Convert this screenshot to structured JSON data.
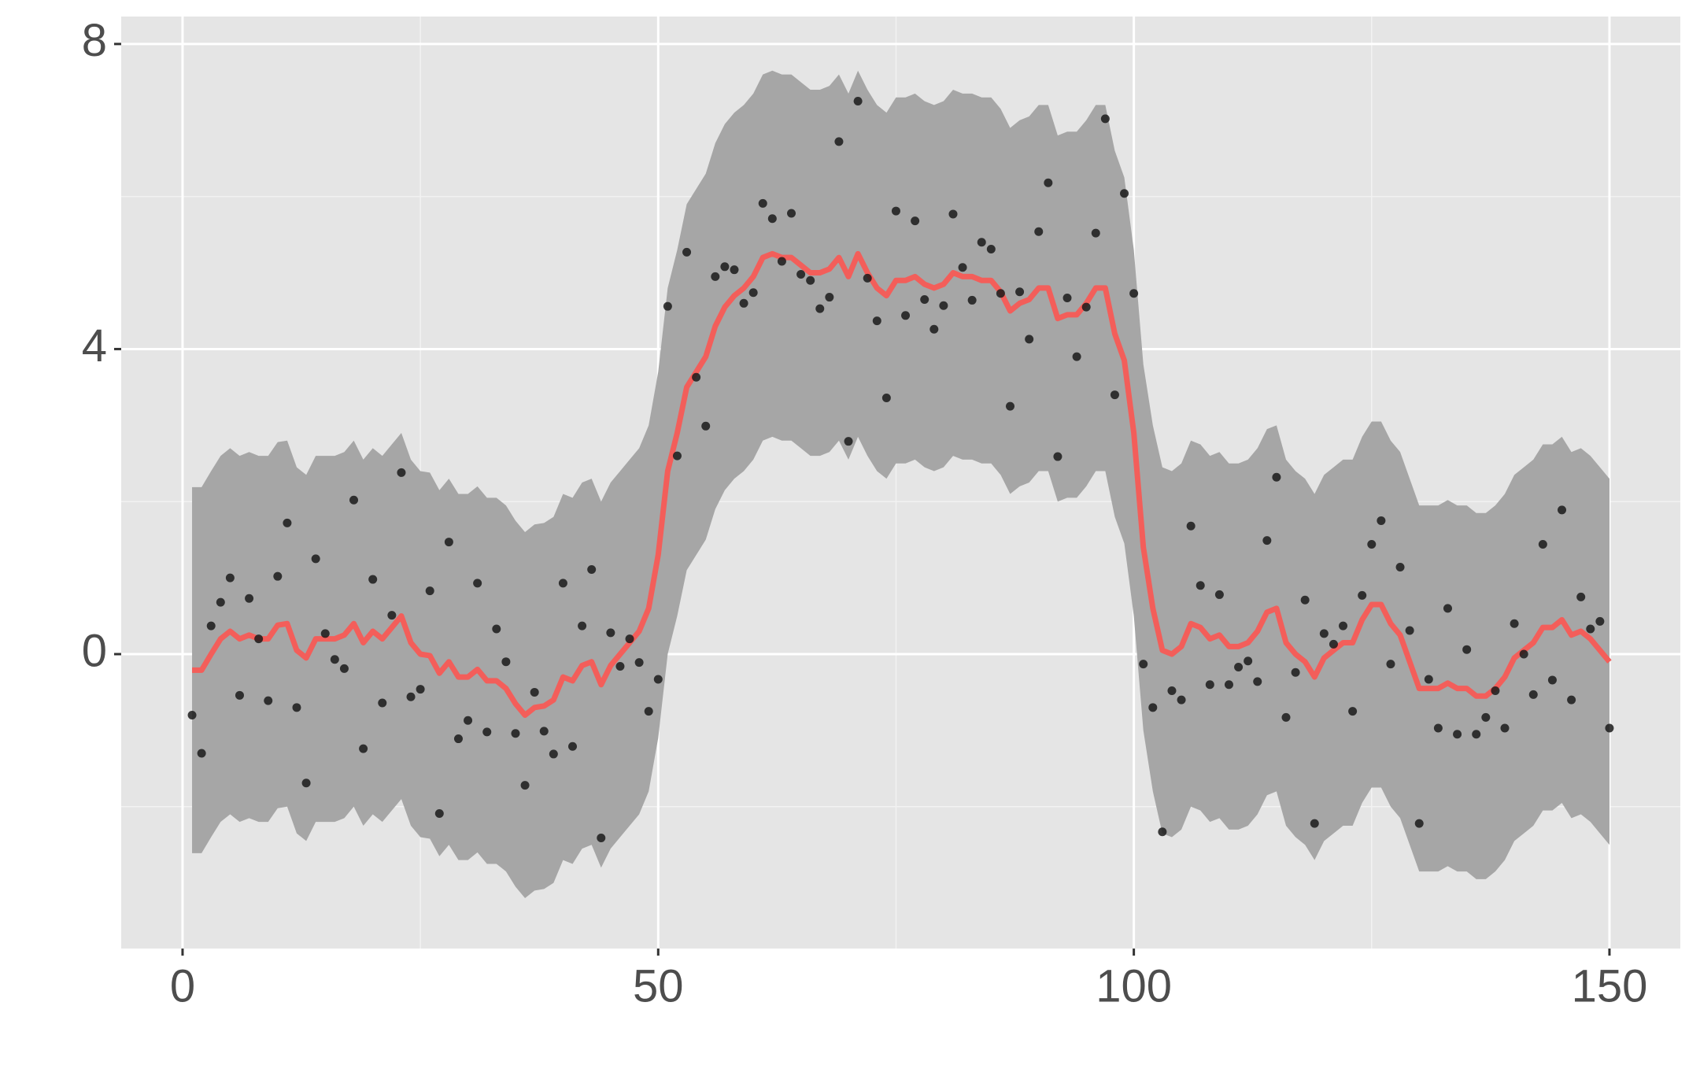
{
  "chart_data": {
    "type": "line",
    "x": [
      1,
      2,
      3,
      4,
      5,
      6,
      7,
      8,
      9,
      10,
      11,
      12,
      13,
      14,
      15,
      16,
      17,
      18,
      19,
      20,
      21,
      22,
      23,
      24,
      25,
      26,
      27,
      28,
      29,
      30,
      31,
      32,
      33,
      34,
      35,
      36,
      37,
      38,
      39,
      40,
      41,
      42,
      43,
      44,
      45,
      46,
      47,
      48,
      49,
      50,
      51,
      52,
      53,
      54,
      55,
      56,
      57,
      58,
      59,
      60,
      61,
      62,
      63,
      64,
      65,
      66,
      67,
      68,
      69,
      70,
      71,
      72,
      73,
      74,
      75,
      76,
      77,
      78,
      79,
      80,
      81,
      82,
      83,
      84,
      85,
      86,
      87,
      88,
      89,
      90,
      91,
      92,
      93,
      94,
      95,
      96,
      97,
      98,
      99,
      100,
      101,
      102,
      103,
      104,
      105,
      106,
      107,
      108,
      109,
      110,
      111,
      112,
      113,
      114,
      115,
      116,
      117,
      118,
      119,
      120,
      121,
      122,
      123,
      124,
      125,
      126,
      127,
      128,
      129,
      130,
      131,
      132,
      133,
      134,
      135,
      136,
      137,
      138,
      139,
      140,
      141,
      142,
      143,
      144,
      145,
      146,
      147,
      148,
      149,
      150
    ],
    "layers": [
      {
        "geom": "ribbon",
        "color": "#a6a6a6",
        "lower": [
          -2.61,
          -2.61,
          -2.4,
          -2.2,
          -2.1,
          -2.2,
          -2.15,
          -2.2,
          -2.2,
          -2.02,
          -2.0,
          -2.35,
          -2.45,
          -2.2,
          -2.2,
          -2.2,
          -2.15,
          -2.0,
          -2.25,
          -2.1,
          -2.2,
          -2.05,
          -1.9,
          -2.25,
          -2.4,
          -2.42,
          -2.65,
          -2.5,
          -2.7,
          -2.7,
          -2.6,
          -2.75,
          -2.75,
          -2.85,
          -3.05,
          -3.2,
          -3.1,
          -3.08,
          -3.0,
          -2.7,
          -2.75,
          -2.55,
          -2.5,
          -2.8,
          -2.55,
          -2.4,
          -2.25,
          -2.1,
          -1.8,
          -1.1,
          0.0,
          0.5,
          1.1,
          1.3,
          1.5,
          1.9,
          2.15,
          2.3,
          2.4,
          2.55,
          2.8,
          2.85,
          2.8,
          2.8,
          2.7,
          2.6,
          2.6,
          2.65,
          2.8,
          2.55,
          2.85,
          2.6,
          2.4,
          2.3,
          2.5,
          2.5,
          2.55,
          2.45,
          2.4,
          2.45,
          2.6,
          2.55,
          2.55,
          2.5,
          2.5,
          2.35,
          2.1,
          2.2,
          2.25,
          2.4,
          2.4,
          2.0,
          2.05,
          2.05,
          2.2,
          2.4,
          2.4,
          1.8,
          1.45,
          0.5,
          -1.0,
          -1.8,
          -2.35,
          -2.4,
          -2.3,
          -2.0,
          -2.05,
          -2.2,
          -2.15,
          -2.3,
          -2.3,
          -2.25,
          -2.1,
          -1.85,
          -1.8,
          -2.25,
          -2.4,
          -2.5,
          -2.7,
          -2.45,
          -2.35,
          -2.25,
          -2.25,
          -1.95,
          -1.75,
          -1.75,
          -2.0,
          -2.15,
          -2.5,
          -2.85,
          -2.85,
          -2.85,
          -2.78,
          -2.85,
          -2.85,
          -2.95,
          -2.95,
          -2.85,
          -2.7,
          -2.45,
          -2.35,
          -2.25,
          -2.05,
          -2.05,
          -1.95,
          -2.15,
          -2.1,
          -2.2,
          -2.35,
          -2.5
        ],
        "upper": [
          2.19,
          2.19,
          2.4,
          2.6,
          2.7,
          2.6,
          2.65,
          2.6,
          2.6,
          2.78,
          2.8,
          2.45,
          2.35,
          2.6,
          2.6,
          2.6,
          2.65,
          2.8,
          2.55,
          2.7,
          2.6,
          2.75,
          2.9,
          2.55,
          2.4,
          2.38,
          2.15,
          2.3,
          2.1,
          2.1,
          2.2,
          2.05,
          2.05,
          1.95,
          1.75,
          1.6,
          1.7,
          1.72,
          1.8,
          2.1,
          2.05,
          2.25,
          2.3,
          2.0,
          2.25,
          2.4,
          2.55,
          2.7,
          3.0,
          3.7,
          4.8,
          5.3,
          5.9,
          6.1,
          6.3,
          6.7,
          6.95,
          7.1,
          7.2,
          7.35,
          7.6,
          7.65,
          7.6,
          7.6,
          7.5,
          7.4,
          7.4,
          7.45,
          7.6,
          7.35,
          7.65,
          7.4,
          7.2,
          7.1,
          7.3,
          7.3,
          7.35,
          7.25,
          7.2,
          7.25,
          7.4,
          7.35,
          7.35,
          7.3,
          7.3,
          7.15,
          6.9,
          7.0,
          7.05,
          7.2,
          7.2,
          6.8,
          6.85,
          6.85,
          7.0,
          7.2,
          7.2,
          6.6,
          6.25,
          5.3,
          3.8,
          3.0,
          2.45,
          2.4,
          2.5,
          2.8,
          2.75,
          2.6,
          2.65,
          2.5,
          2.5,
          2.55,
          2.7,
          2.95,
          3.0,
          2.55,
          2.4,
          2.3,
          2.1,
          2.35,
          2.45,
          2.55,
          2.55,
          2.85,
          3.05,
          3.05,
          2.8,
          2.65,
          2.3,
          1.95,
          1.95,
          1.95,
          2.02,
          1.95,
          1.95,
          1.85,
          1.85,
          1.95,
          2.1,
          2.35,
          2.45,
          2.55,
          2.75,
          2.75,
          2.85,
          2.65,
          2.7,
          2.6,
          2.45,
          2.3
        ]
      },
      {
        "geom": "line",
        "color": "#f35e5a",
        "values": [
          -0.21,
          -0.21,
          0.0,
          0.2,
          0.3,
          0.2,
          0.25,
          0.2,
          0.2,
          0.38,
          0.4,
          0.05,
          -0.05,
          0.2,
          0.2,
          0.2,
          0.25,
          0.4,
          0.15,
          0.3,
          0.2,
          0.35,
          0.5,
          0.15,
          0.0,
          -0.02,
          -0.25,
          -0.1,
          -0.3,
          -0.3,
          -0.2,
          -0.35,
          -0.35,
          -0.45,
          -0.65,
          -0.8,
          -0.7,
          -0.68,
          -0.6,
          -0.3,
          -0.35,
          -0.15,
          -0.1,
          -0.4,
          -0.15,
          0.0,
          0.15,
          0.3,
          0.6,
          1.3,
          2.4,
          2.9,
          3.5,
          3.7,
          3.9,
          4.3,
          4.55,
          4.7,
          4.8,
          4.95,
          5.2,
          5.25,
          5.2,
          5.2,
          5.1,
          5.0,
          5.0,
          5.05,
          5.2,
          4.95,
          5.25,
          5.0,
          4.8,
          4.7,
          4.9,
          4.9,
          4.95,
          4.85,
          4.8,
          4.85,
          5.0,
          4.95,
          4.95,
          4.9,
          4.9,
          4.75,
          4.5,
          4.6,
          4.65,
          4.8,
          4.8,
          4.4,
          4.45,
          4.45,
          4.6,
          4.8,
          4.8,
          4.2,
          3.85,
          2.9,
          1.4,
          0.6,
          0.05,
          0.0,
          0.1,
          0.4,
          0.35,
          0.2,
          0.25,
          0.1,
          0.1,
          0.15,
          0.3,
          0.55,
          0.6,
          0.15,
          0.0,
          -0.1,
          -0.3,
          -0.05,
          0.05,
          0.15,
          0.15,
          0.45,
          0.65,
          0.65,
          0.4,
          0.25,
          -0.1,
          -0.45,
          -0.45,
          -0.45,
          -0.38,
          -0.45,
          -0.45,
          -0.55,
          -0.55,
          -0.45,
          -0.3,
          -0.05,
          0.05,
          0.15,
          0.35,
          0.35,
          0.45,
          0.25,
          0.3,
          0.2,
          0.05,
          -0.1
        ]
      },
      {
        "geom": "point",
        "color": "#1a1a1a",
        "values": [
          -0.8,
          -1.3,
          0.37,
          0.68,
          1.0,
          -0.54,
          0.73,
          0.2,
          -0.61,
          1.02,
          1.72,
          -0.7,
          -1.69,
          1.25,
          0.27,
          -0.07,
          -0.19,
          2.02,
          -1.24,
          0.98,
          -0.64,
          0.51,
          2.38,
          -0.56,
          -0.46,
          0.83,
          -2.09,
          1.47,
          -1.11,
          -0.87,
          0.93,
          -1.02,
          0.33,
          -0.1,
          -1.04,
          -1.72,
          -0.5,
          -1.01,
          -1.31,
          0.93,
          -1.21,
          0.37,
          1.11,
          -2.41,
          0.28,
          -0.16,
          0.2,
          -0.11,
          -0.75,
          -0.33,
          4.56,
          2.6,
          5.27,
          3.63,
          2.99,
          4.95,
          5.08,
          5.04,
          4.6,
          4.74,
          5.91,
          5.71,
          5.15,
          5.78,
          4.98,
          4.9,
          4.53,
          4.68,
          6.72,
          2.79,
          7.25,
          4.93,
          4.37,
          3.36,
          5.81,
          4.44,
          5.68,
          4.65,
          4.26,
          4.57,
          5.77,
          5.07,
          4.64,
          5.4,
          5.31,
          4.73,
          3.25,
          4.75,
          4.13,
          5.54,
          6.18,
          2.59,
          4.67,
          3.9,
          4.55,
          5.52,
          7.02,
          3.4,
          6.04,
          4.73,
          -0.13,
          -0.7,
          -2.33,
          -0.48,
          -0.6,
          1.68,
          0.9,
          -0.4,
          0.78,
          -0.4,
          -0.17,
          -0.09,
          -0.36,
          1.49,
          2.32,
          -0.83,
          -0.24,
          0.71,
          -2.22,
          0.27,
          0.13,
          0.37,
          -0.75,
          0.77,
          1.44,
          1.75,
          -0.13,
          1.14,
          0.31,
          -2.22,
          -0.33,
          -0.97,
          0.6,
          -1.05,
          0.06,
          -1.05,
          -0.83,
          -0.48,
          -0.97,
          0.4,
          0.0,
          -0.53,
          1.44,
          -0.34,
          1.89,
          -0.6,
          0.75,
          0.33,
          0.43,
          -0.97
        ]
      }
    ],
    "xlim": [
      -6.45,
      157.45
    ],
    "ylim": [
      -3.86,
      8.36
    ],
    "xticks": [
      0,
      50,
      100,
      150
    ],
    "yticks": [
      0,
      4,
      8
    ],
    "xminor": [
      25,
      75,
      125
    ],
    "yminor": [
      -2,
      2,
      6
    ],
    "grid": true
  }
}
